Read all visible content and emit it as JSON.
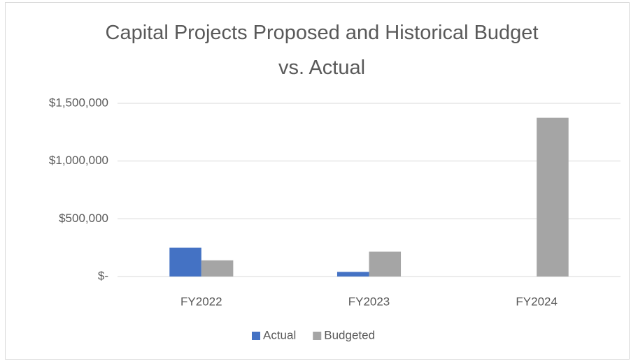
{
  "chart_data": {
    "type": "bar",
    "title": "Capital Projects Proposed and Historical Budget vs. Actual",
    "categories": [
      "FY2022",
      "FY2023",
      "FY2024"
    ],
    "series": [
      {
        "name": "Actual",
        "color": "#4472c4",
        "values": [
          250000,
          40000,
          0
        ]
      },
      {
        "name": "Budgeted",
        "color": "#a5a5a5",
        "values": [
          140000,
          215000,
          1375000
        ]
      }
    ],
    "ylim": [
      0,
      1500000
    ],
    "yticks": [
      {
        "value": 0,
        "label": "$-"
      },
      {
        "value": 500000,
        "label": "$500,000"
      },
      {
        "value": 1000000,
        "label": "$1,000,000"
      },
      {
        "value": 1500000,
        "label": "$1,500,000"
      }
    ],
    "grid": true,
    "legend": "bottom"
  }
}
